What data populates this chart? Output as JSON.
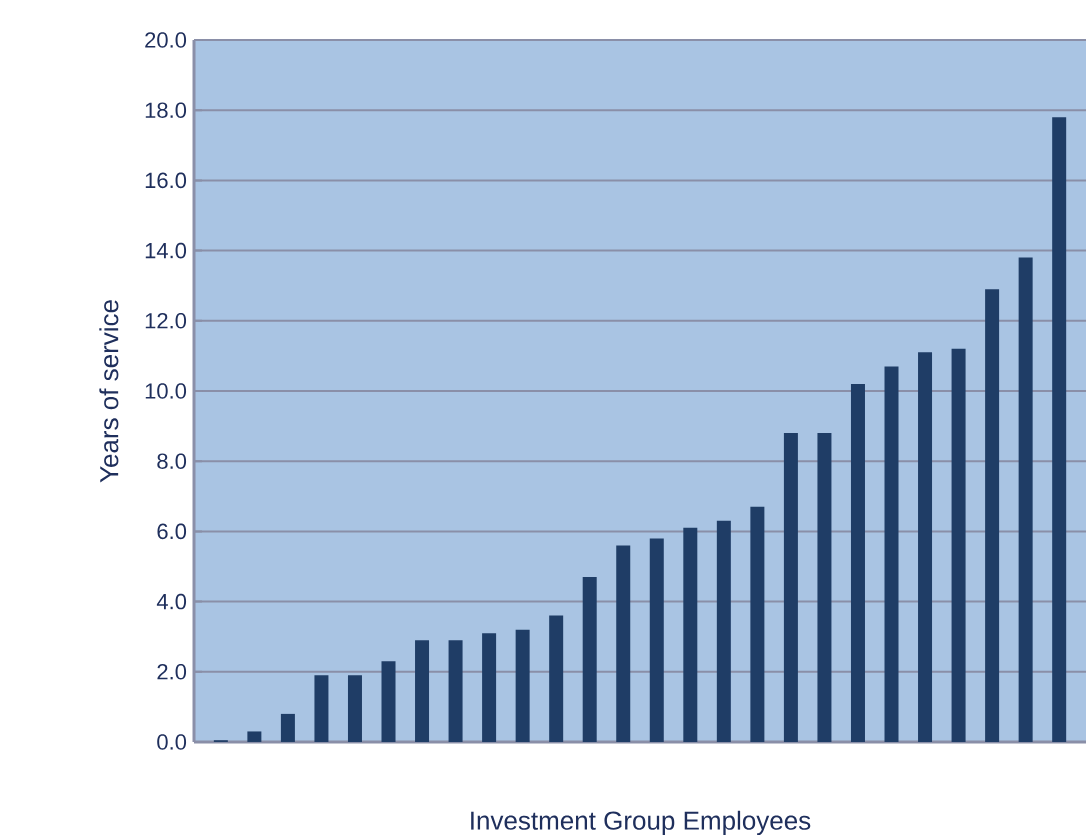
{
  "chart_data": {
    "type": "bar",
    "xlabel": "Investment Group Employees",
    "ylabel": "Years of service",
    "categories": [
      null,
      null,
      null,
      null,
      null,
      null,
      null,
      null,
      null,
      null,
      null,
      null,
      null,
      null,
      null,
      null,
      null,
      null,
      null,
      null,
      null,
      null,
      null,
      null,
      null,
      null
    ],
    "values": [
      0.05,
      0.3,
      0.8,
      1.9,
      1.9,
      2.3,
      2.9,
      2.9,
      3.1,
      3.2,
      3.6,
      4.7,
      5.6,
      5.8,
      6.1,
      6.3,
      6.7,
      8.8,
      8.8,
      10.2,
      10.7,
      11.1,
      11.2,
      12.9,
      13.8,
      17.8
    ],
    "color": "#1f3d66",
    "ylim": [
      0,
      20
    ],
    "yticks": [
      {
        "value": 0,
        "label": "0.0"
      },
      {
        "value": 2,
        "label": "2.0"
      },
      {
        "value": 4,
        "label": "4.0"
      },
      {
        "value": 6,
        "label": "6.0"
      },
      {
        "value": 8,
        "label": "8.0"
      },
      {
        "value": 10,
        "label": "10.0"
      },
      {
        "value": 12,
        "label": "12.0"
      },
      {
        "value": 14,
        "label": "14.0"
      },
      {
        "value": 16,
        "label": "16.0"
      },
      {
        "value": 18,
        "label": "18.0"
      },
      {
        "value": 20,
        "label": "20.0"
      }
    ],
    "grid": "y",
    "tick_labels": "y"
  }
}
